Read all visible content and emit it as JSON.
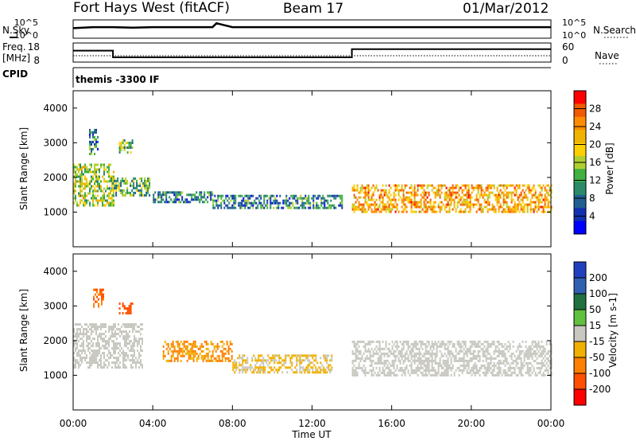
{
  "header": {
    "station": "Fort Hays West (fitACF)",
    "beam": "Beam 17",
    "date": "01/Mar/2012"
  },
  "top_panels": {
    "nsky_label": "N.Sky",
    "nsky_ticks": [
      "10^5",
      "10^0"
    ],
    "nsearch_label": "N.Search",
    "nsearch_ticks": [
      "10^5",
      "10^0"
    ],
    "freq_label_1": "Freq.",
    "freq_label_2": "[MHz]",
    "freq_ticks": [
      "18",
      "8"
    ],
    "nave_label": "Nave",
    "nave_ticks": [
      "60",
      "0"
    ],
    "cpid_label": "CPID",
    "cpid_text": "themis -3300 IF"
  },
  "power_panel": {
    "ylabel": "Slant Range [km]",
    "yticks": [
      "4000",
      "3000",
      "2000",
      "1000"
    ],
    "cbar_label": "Power [dB]",
    "cbar_ticks": [
      "28",
      "24",
      "20",
      "16",
      "12",
      "8",
      "4"
    ],
    "cbar_colors": [
      "#ff0000",
      "#f05a00",
      "#ff8c00",
      "#f0b400",
      "#ffd000",
      "#b0d030",
      "#40b040",
      "#2a8a6a",
      "#206090",
      "#1030b0",
      "#0000ff"
    ]
  },
  "velocity_panel": {
    "ylabel": "Slant Range [km]",
    "yticks": [
      "4000",
      "3000",
      "2000",
      "1000"
    ],
    "cbar_label": "Velocity [m s-1]",
    "cbar_ticks": [
      "200",
      "100",
      "50",
      "15",
      "-15",
      "-50",
      "-100",
      "-200"
    ],
    "cbar_colors": [
      "#2040c0",
      "#3060b0",
      "#207040",
      "#60c040",
      "#c8c8c0",
      "#f0b000",
      "#ff8000",
      "#ff5000",
      "#ff0000"
    ]
  },
  "xaxis": {
    "ticks": [
      "00:00",
      "04:00",
      "08:00",
      "12:00",
      "16:00",
      "20:00",
      "00:00"
    ],
    "label": "Time UT"
  },
  "chart_data": [
    {
      "type": "line",
      "title": "N.Sky / N.Search",
      "x_units": "hours UT",
      "x": [
        0,
        1,
        2,
        3,
        4,
        5,
        6,
        7,
        7.2,
        8,
        9,
        10,
        11,
        12,
        13,
        14,
        15,
        16,
        17,
        18,
        19,
        20,
        21,
        22,
        23,
        24
      ],
      "series": [
        {
          "name": "N.Sky",
          "values": [
            1000,
            2000,
            2000,
            1500,
            2000,
            2000,
            2000,
            2000,
            30000,
            2000,
            2000,
            2000,
            2000,
            2000,
            2000,
            2000,
            2000,
            2000,
            2000,
            2000,
            2000,
            2000,
            2000,
            2000,
            2000,
            2000
          ]
        }
      ],
      "ylim": [
        1,
        100000
      ],
      "yscale": "log"
    },
    {
      "type": "line",
      "title": "Freq. [MHz] / Nave",
      "x": [
        0,
        2,
        2,
        14,
        14,
        24
      ],
      "series": [
        {
          "name": "Freq.",
          "values": [
            14,
            14,
            10.5,
            10.5,
            14.8,
            14.8
          ]
        },
        {
          "name": "Nave",
          "values": [
            12,
            12,
            12,
            12,
            12,
            12
          ]
        }
      ],
      "ylim_freq": [
        8,
        18
      ],
      "ylim_nave": [
        0,
        60
      ]
    },
    {
      "type": "heatmap",
      "title": "Power [dB]",
      "x_units": "hours UT",
      "xlim": [
        0,
        24
      ],
      "ylim": [
        0,
        4500
      ],
      "zlim": [
        0,
        30
      ],
      "bands": [
        {
          "x": [
            0,
            2
          ],
          "y": [
            1200,
            2400
          ],
          "z": 16
        },
        {
          "x": [
            0.8,
            1.2
          ],
          "y": [
            2700,
            3400
          ],
          "z": 8
        },
        {
          "x": [
            2.3,
            3
          ],
          "y": [
            2700,
            3100
          ],
          "z": 12
        },
        {
          "x": [
            1.8,
            3.8
          ],
          "y": [
            1500,
            2000
          ],
          "z": 12
        },
        {
          "x": [
            4,
            7
          ],
          "y": [
            1300,
            1600
          ],
          "z": 8
        },
        {
          "x": [
            7,
            13.5
          ],
          "y": [
            1100,
            1500
          ],
          "z": 8
        },
        {
          "x": [
            14,
            24
          ],
          "y": [
            1000,
            1800
          ],
          "z": 22
        }
      ]
    },
    {
      "type": "heatmap",
      "title": "Velocity [m s-1]",
      "x_units": "hours UT",
      "xlim": [
        0,
        24
      ],
      "ylim": [
        0,
        4500
      ],
      "zlim": [
        -200,
        200
      ],
      "bands": [
        {
          "x": [
            0,
            3.5
          ],
          "y": [
            1200,
            2500
          ],
          "z": 0
        },
        {
          "x": [
            1,
            1.5
          ],
          "y": [
            3000,
            3500
          ],
          "z": -120
        },
        {
          "x": [
            2.3,
            3
          ],
          "y": [
            2800,
            3100
          ],
          "z": -150
        },
        {
          "x": [
            4.5,
            8
          ],
          "y": [
            1400,
            2000
          ],
          "z": -80
        },
        {
          "x": [
            8,
            13
          ],
          "y": [
            1100,
            1600
          ],
          "z": -30
        },
        {
          "x": [
            14,
            24
          ],
          "y": [
            1000,
            2000
          ],
          "z": 0
        }
      ]
    }
  ]
}
